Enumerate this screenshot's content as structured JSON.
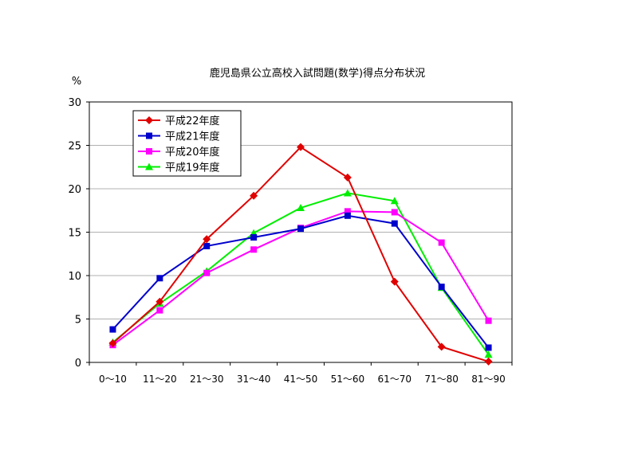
{
  "chart_data": {
    "type": "line",
    "title": "鹿児島県公立高校入試問題(数学)得点分布状況",
    "ylabel": "%",
    "xlabel": "",
    "ylim": [
      0,
      30
    ],
    "yticks": [
      0,
      5,
      10,
      15,
      20,
      25,
      30
    ],
    "grid": true,
    "legend_position": "top-left",
    "categories": [
      "0～10",
      "11～20",
      "21～30",
      "31～40",
      "41～50",
      "51～60",
      "61～70",
      "71～80",
      "81～90"
    ],
    "series": [
      {
        "name": "平成22年度",
        "color": "#e00000",
        "marker": "diamond",
        "values": [
          2.2,
          7.0,
          14.2,
          19.2,
          24.8,
          21.3,
          9.3,
          1.8,
          0.1
        ]
      },
      {
        "name": "平成21年度",
        "color": "#0000cc",
        "marker": "square",
        "values": [
          3.8,
          9.7,
          13.4,
          14.4,
          15.4,
          16.9,
          16.0,
          8.7,
          1.7
        ]
      },
      {
        "name": "平成20年度",
        "color": "#ff00ff",
        "marker": "square",
        "values": [
          2.0,
          6.0,
          10.3,
          13.0,
          15.5,
          17.4,
          17.3,
          13.8,
          4.8
        ]
      },
      {
        "name": "平成19年度",
        "color": "#00ee00",
        "marker": "triangle",
        "values": [
          2.3,
          6.8,
          10.5,
          14.9,
          17.8,
          19.5,
          18.6,
          8.6,
          0.9
        ]
      }
    ]
  }
}
